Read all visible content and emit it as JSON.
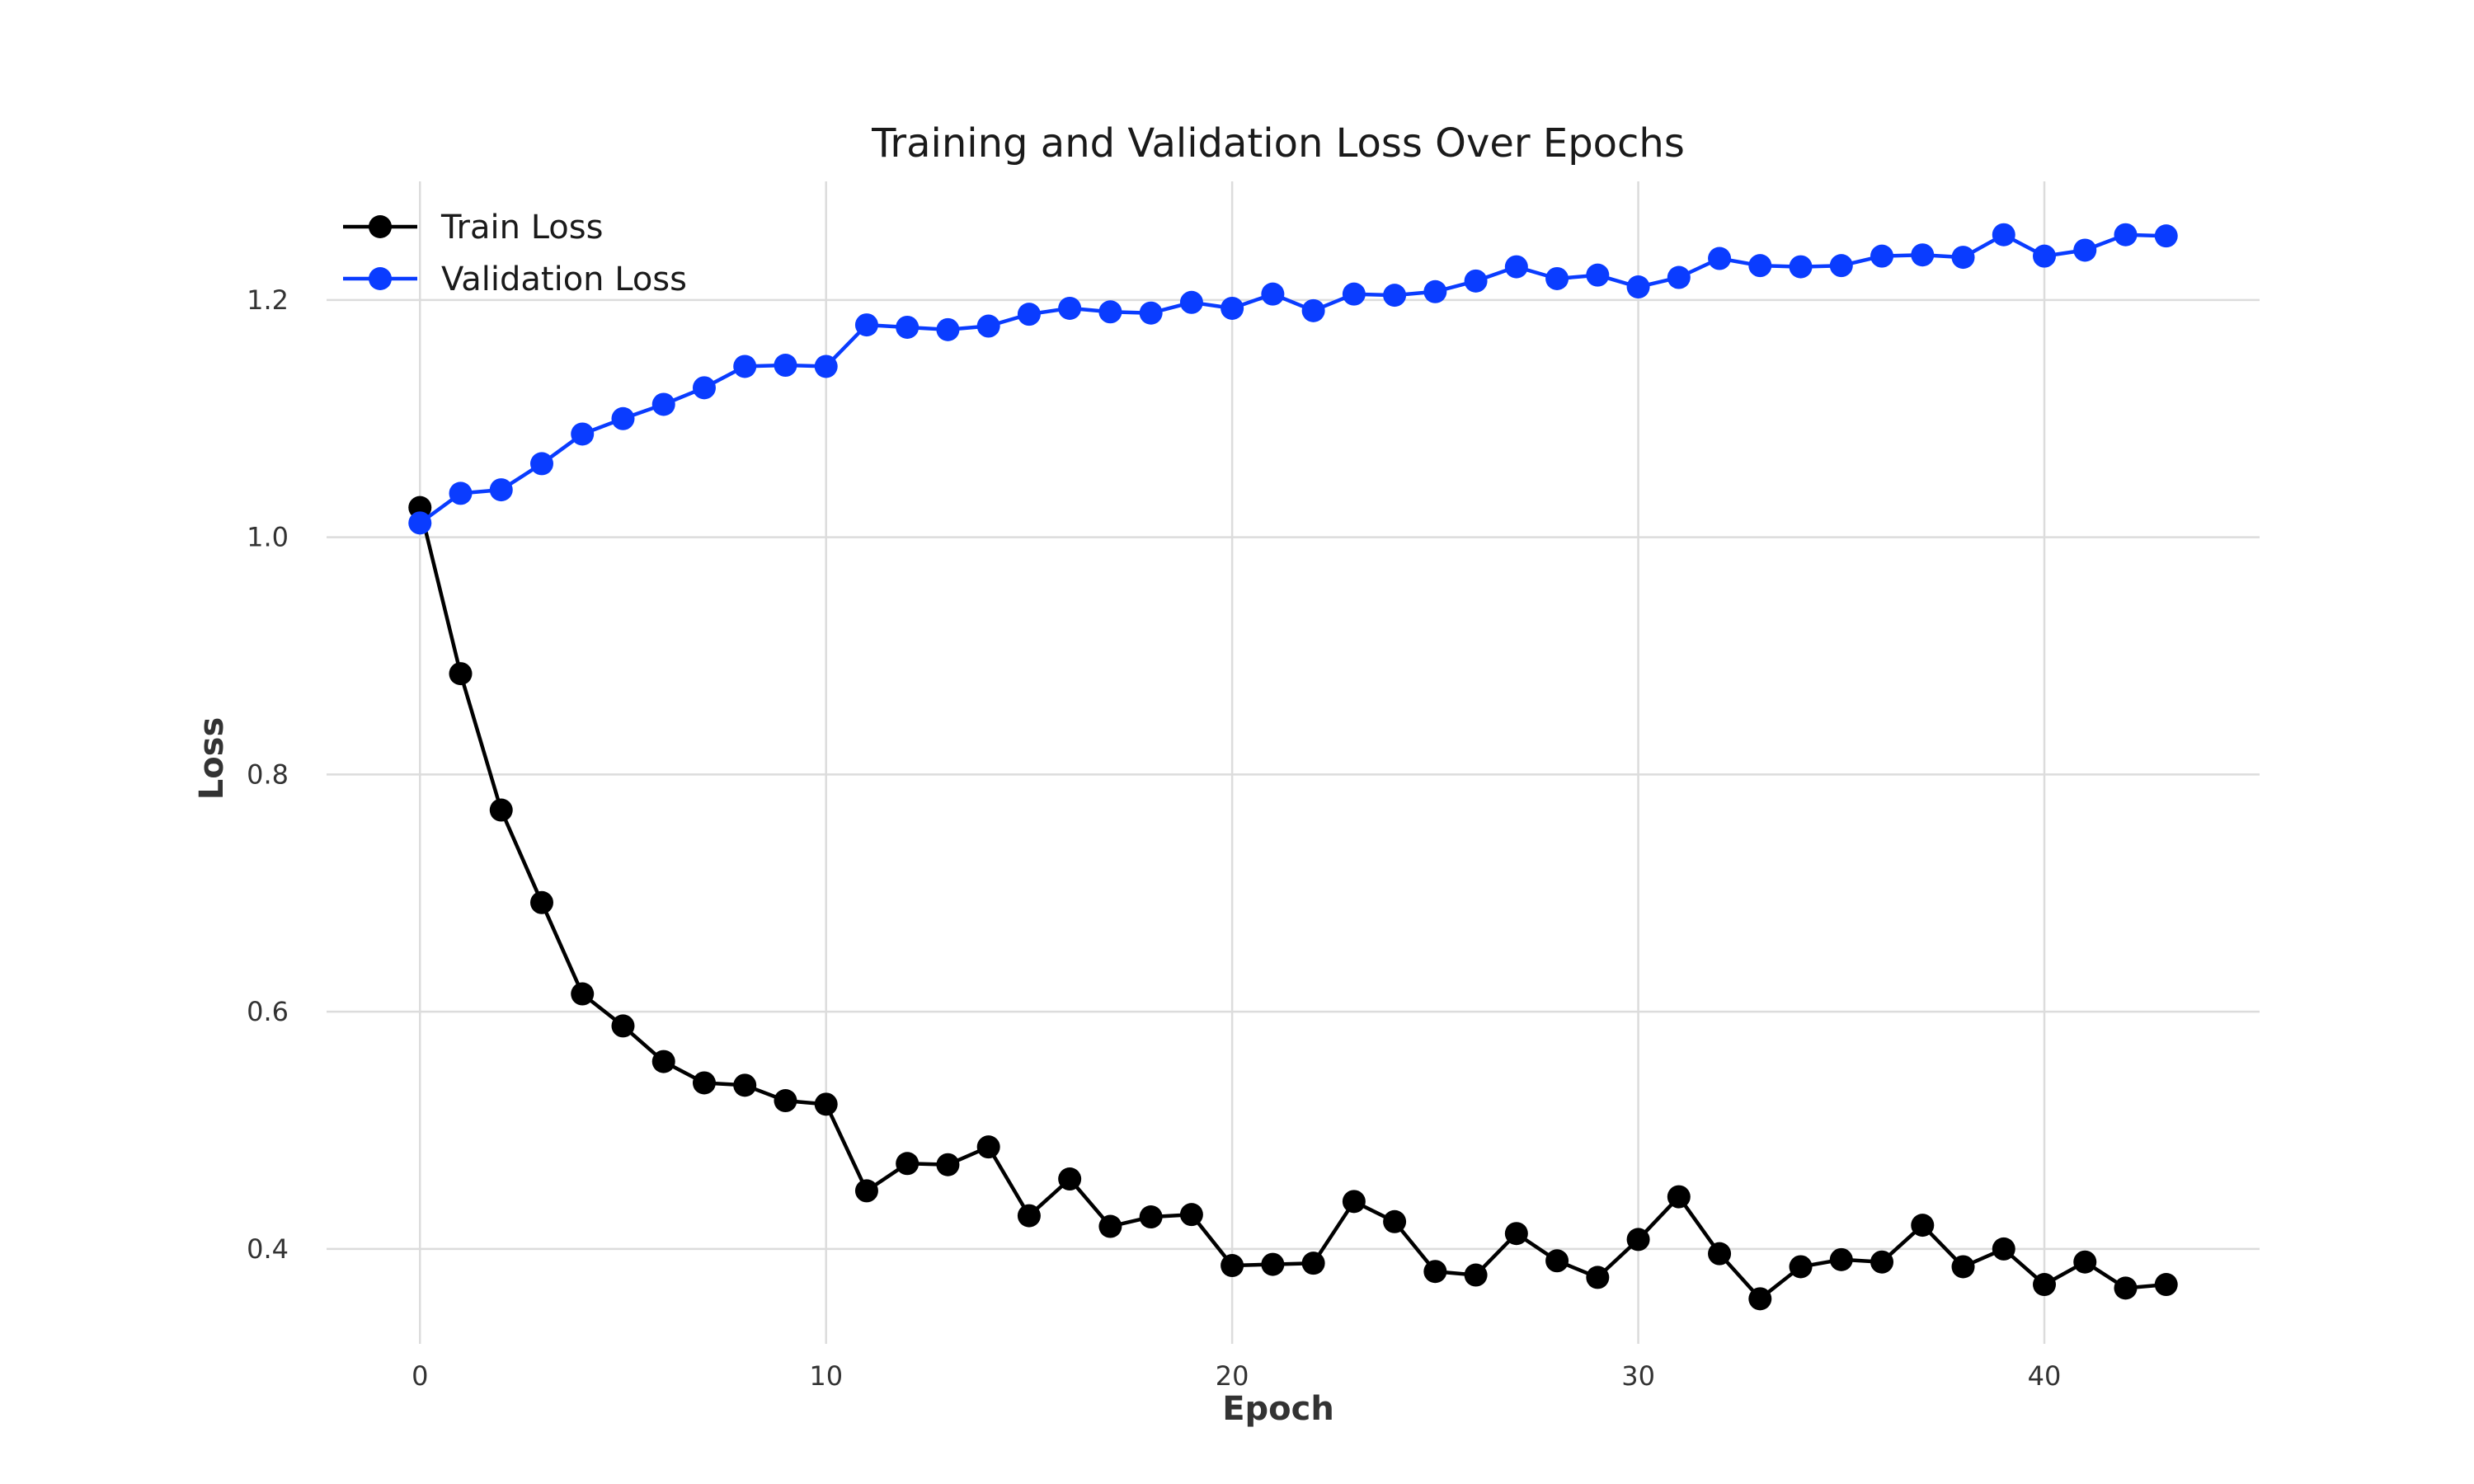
{
  "chart_data": {
    "type": "line",
    "title": "Training and Validation Loss Over Epochs",
    "xlabel": "Epoch",
    "ylabel": "Loss",
    "xlim": [
      -2.3,
      45.3
    ],
    "ylim": [
      0.32,
      1.3
    ],
    "xticks": [
      0,
      10,
      20,
      30,
      40
    ],
    "yticks": [
      0.4,
      0.6,
      0.8,
      1.0,
      1.2
    ],
    "ytick_labels": [
      "0.4",
      "0.6",
      "0.8",
      "1.0",
      "1.2"
    ],
    "grid": true,
    "legend_position": "top-left",
    "x": [
      0,
      1,
      2,
      3,
      4,
      5,
      6,
      7,
      8,
      9,
      10,
      11,
      12,
      13,
      14,
      15,
      16,
      17,
      18,
      19,
      20,
      21,
      22,
      23,
      24,
      25,
      26,
      27,
      28,
      29,
      30,
      31,
      32,
      33,
      34,
      35,
      36,
      37,
      38,
      39,
      40,
      41,
      42,
      43
    ],
    "series": [
      {
        "name": "Train Loss",
        "color": "#000000",
        "values": [
          1.025,
          0.885,
          0.77,
          0.692,
          0.615,
          0.588,
          0.558,
          0.54,
          0.538,
          0.525,
          0.522,
          0.449,
          0.472,
          0.471,
          0.486,
          0.428,
          0.459,
          0.419,
          0.427,
          0.429,
          0.386,
          0.387,
          0.388,
          0.44,
          0.423,
          0.381,
          0.378,
          0.413,
          0.39,
          0.376,
          0.408,
          0.444,
          0.396,
          0.358,
          0.385,
          0.391,
          0.389,
          0.42,
          0.385,
          0.4,
          0.37,
          0.389,
          0.367,
          0.37
        ]
      },
      {
        "name": "Validation Loss",
        "color": "#0a3cff",
        "values": [
          1.012,
          1.037,
          1.04,
          1.062,
          1.087,
          1.1,
          1.112,
          1.126,
          1.144,
          1.145,
          1.144,
          1.179,
          1.177,
          1.175,
          1.178,
          1.188,
          1.193,
          1.19,
          1.189,
          1.198,
          1.193,
          1.205,
          1.191,
          1.205,
          1.204,
          1.207,
          1.216,
          1.228,
          1.218,
          1.221,
          1.211,
          1.219,
          1.235,
          1.229,
          1.228,
          1.229,
          1.237,
          1.238,
          1.236,
          1.255,
          1.237,
          1.242,
          1.255,
          1.254
        ]
      }
    ]
  }
}
